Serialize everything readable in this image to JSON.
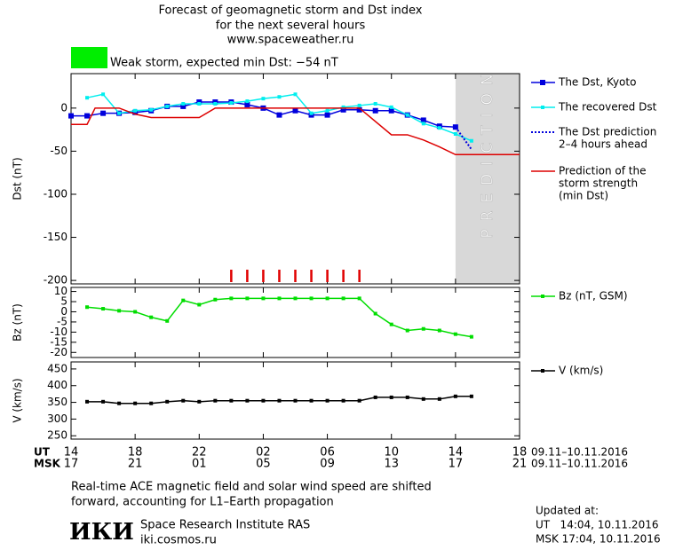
{
  "header": {
    "title": [
      "Forecast of geomagnetic storm and Dst index",
      "for the next several hours",
      "www.spaceweather.ru"
    ],
    "storm_level": {
      "text": "Weak storm, expected min Dst: −54 nT",
      "color": "#00ee00"
    }
  },
  "chart_data": [
    {
      "type": "line",
      "y_label": "Dst (nT)",
      "xlim": [
        0,
        28
      ],
      "ylim": [
        -204,
        40
      ],
      "yticks": [
        -200,
        -150,
        -100,
        -50,
        0
      ],
      "prediction_region": {
        "xlim": [
          24,
          28
        ],
        "label": "PREDICTION",
        "color": "#d8d8d8"
      },
      "storm_marks": {
        "color": "#e00000",
        "x": [
          10,
          11,
          12,
          13,
          14,
          15,
          16,
          17,
          18
        ]
      },
      "series": [
        {
          "name": "The Dst, Kyoto",
          "color": "#0000dd",
          "marker": "square",
          "x": [
            0,
            1,
            2,
            3,
            4,
            5,
            6,
            7,
            8,
            9,
            10,
            11,
            12,
            13,
            14,
            15,
            16,
            17,
            18,
            19,
            20,
            21,
            22,
            23,
            24
          ],
          "values": [
            -9,
            -9,
            -6,
            -6,
            -5,
            -3,
            2,
            2,
            7,
            7,
            7,
            4,
            0,
            -8,
            -3,
            -8,
            -8,
            -2,
            -2,
            -3,
            -3,
            -8,
            -14,
            -21,
            -22
          ]
        },
        {
          "name": "The recovered Dst",
          "color": "#00eeee",
          "marker": "small-square",
          "x": [
            1,
            2,
            3,
            4,
            5,
            6,
            7,
            8,
            9,
            10,
            11,
            12,
            13,
            14,
            15,
            16,
            17,
            18,
            19,
            20,
            21,
            22,
            23,
            24,
            25
          ],
          "values": [
            12,
            16,
            -6,
            -3,
            -2,
            2,
            5,
            5,
            5,
            6,
            8,
            11,
            13,
            16,
            -6,
            -3,
            1,
            3,
            5,
            1,
            -8,
            -18,
            -23,
            -30,
            -38
          ]
        },
        {
          "name": [
            "The Dst prediction",
            "2–4 hours ahead"
          ],
          "color": "#0000dd",
          "dash": true,
          "x": [
            24,
            25
          ],
          "values": [
            -22,
            -48
          ]
        },
        {
          "name": [
            "Prediction of the",
            "storm strength",
            "(min Dst)"
          ],
          "color": "#dd0000",
          "x": [
            0,
            1,
            1.5,
            3,
            4,
            5,
            8,
            9,
            18,
            20,
            21,
            22,
            23,
            24,
            28
          ],
          "values": [
            -19,
            -19,
            0,
            0,
            -7,
            -11,
            -11,
            0,
            0,
            -31,
            -31,
            -37,
            -45,
            -54,
            -54
          ]
        }
      ]
    },
    {
      "type": "line",
      "y_label": "Bz (nT)",
      "xlim": [
        0,
        28
      ],
      "ylim": [
        -22.5,
        12
      ],
      "yticks": [
        -20,
        -15,
        -10,
        -5,
        0,
        5,
        10
      ],
      "series": [
        {
          "name": "Bz (nT, GSM)",
          "color": "#00dd00",
          "marker": "small-square",
          "x": [
            1,
            2,
            3,
            4,
            5,
            6,
            7,
            8,
            9,
            10,
            11,
            12,
            13,
            14,
            15,
            16,
            17,
            18,
            19,
            20,
            21,
            22,
            23,
            24,
            25
          ],
          "values": [
            2.3,
            1.5,
            0.5,
            0,
            -2.7,
            -4.5,
            5.6,
            3.5,
            6,
            6.6,
            6.6,
            6.6,
            6.6,
            6.6,
            6.6,
            6.6,
            6.6,
            6.6,
            -0.9,
            -6.2,
            -9.2,
            -8.4,
            -9.2,
            -11,
            -12.3
          ]
        }
      ]
    },
    {
      "type": "line",
      "y_label": "V (km/s)",
      "xlim": [
        0,
        28
      ],
      "ylim": [
        240,
        471
      ],
      "yticks": [
        250,
        300,
        350,
        400,
        450
      ],
      "xticks": [
        {
          "value": 0,
          "label": "14"
        },
        {
          "value": 4,
          "label": "18"
        },
        {
          "value": 8,
          "label": "22"
        },
        {
          "value": 12,
          "label": "02"
        },
        {
          "value": 16,
          "label": "06"
        },
        {
          "value": 20,
          "label": "10"
        },
        {
          "value": 24,
          "label": "14"
        },
        {
          "value": 28,
          "label": "18"
        }
      ],
      "msk_labels": [
        "17",
        "21",
        "01",
        "05",
        "09",
        "13",
        "17",
        "21"
      ],
      "ut_label": "UT",
      "msk_label": "MSK",
      "date_range": "09.11–10.11.2016",
      "series": [
        {
          "name": "V (km/s)",
          "color": "#000000",
          "marker": "small-square",
          "x": [
            1,
            2,
            3,
            4,
            5,
            6,
            7,
            8,
            9,
            10,
            11,
            12,
            13,
            14,
            15,
            16,
            17,
            18,
            19,
            20,
            21,
            22,
            23,
            24,
            25
          ],
          "values": [
            352,
            352,
            347,
            347,
            347,
            352,
            355,
            352,
            355,
            355,
            355,
            355,
            355,
            355,
            355,
            355,
            355,
            355,
            365,
            365,
            365,
            360,
            360,
            368,
            368
          ]
        }
      ]
    }
  ],
  "footer": {
    "note": [
      "Real-time ACE magnetic field and solar wind speed are shifted",
      "forward, accounting for L1–Earth propagation"
    ],
    "logo": "ИКИ",
    "institute": "Space Research Institute RAS",
    "site": "iki.cosmos.ru",
    "updated": [
      "Updated at:",
      "UT   14:04, 10.11.2016",
      "MSK 17:04, 10.11.2016"
    ]
  }
}
